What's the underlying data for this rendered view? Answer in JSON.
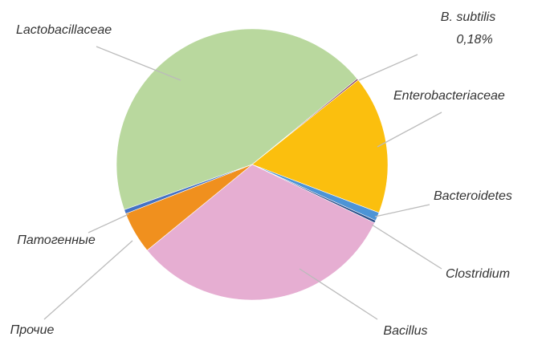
{
  "chart_data": {
    "type": "pie",
    "categories": [
      "Lactobacillaceae",
      "B. subtilis",
      "Enterobacteriaceae",
      "Bacteroidetes",
      "Clostridium",
      "Bacillus",
      "Прочие",
      "Патогенные"
    ],
    "values": [
      44.52,
      0.18,
      16.5,
      1,
      0.3,
      32,
      5,
      0.5
    ],
    "value_labels": [
      null,
      "0,18%",
      null,
      null,
      null,
      null,
      null,
      null
    ],
    "colors": [
      "#b9d89e",
      "#7b2e5a",
      "#fbbf0e",
      "#4d94d6",
      "#2c4f8a",
      "#e6aed2",
      "#f0901e",
      "#4472c4"
    ]
  }
}
